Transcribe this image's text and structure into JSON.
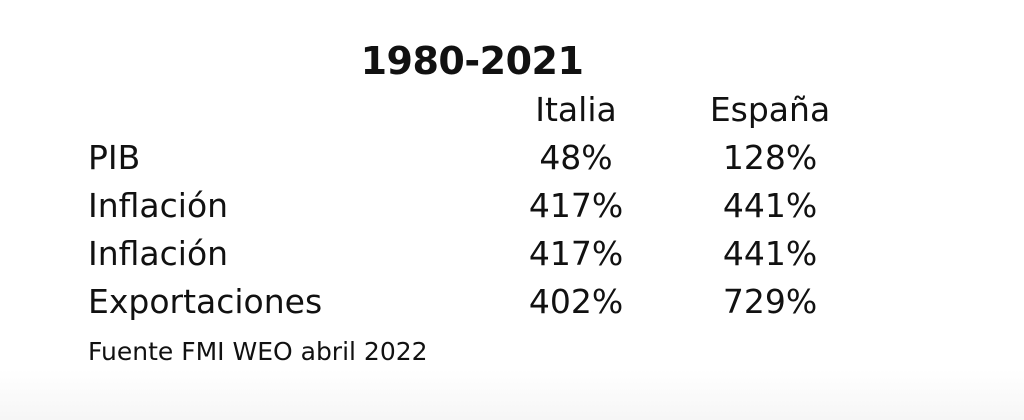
{
  "table": {
    "title": "1980-2021",
    "columns": [
      "Italia",
      "España"
    ],
    "rows": [
      {
        "label": "PIB",
        "values": [
          "48%",
          "128%"
        ]
      },
      {
        "label": "Inflación",
        "values": [
          "417%",
          "441%"
        ]
      },
      {
        "label": "Inflación",
        "values": [
          "417%",
          "441%"
        ]
      },
      {
        "label": "Exportaciones",
        "values": [
          "402%",
          "729%"
        ]
      }
    ]
  },
  "source": "Fuente FMI WEO abril 2022"
}
